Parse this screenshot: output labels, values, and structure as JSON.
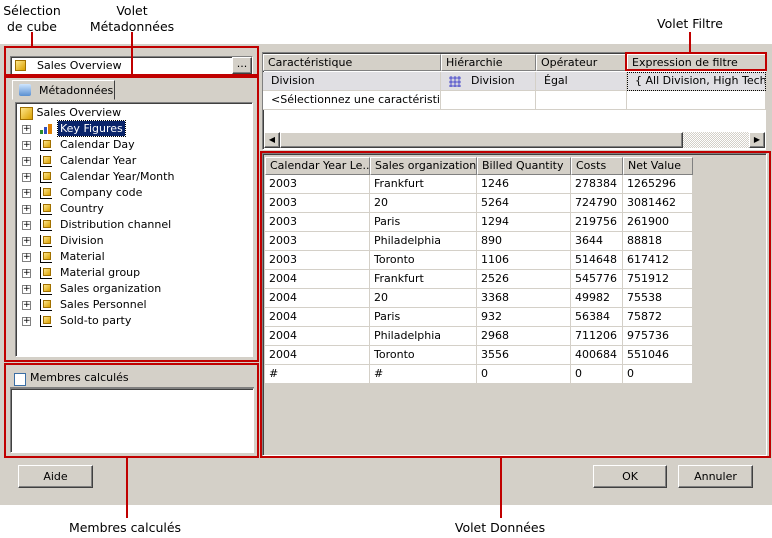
{
  "annotations": {
    "cube_selection": "Sélection\nde cube",
    "metadata_pane": "Volet\nMétadonnées",
    "filter_pane": "Volet Filtre",
    "calc_members": "Membres calculés",
    "data_pane": "Volet Données"
  },
  "cube_selector": {
    "value": "Sales Overview",
    "browse_label": "..."
  },
  "metadata": {
    "tab_label": "Métadonnées",
    "root": "Sales Overview",
    "items": [
      {
        "label": "Key Figures",
        "icon": "key-figures-icon",
        "selected": true
      },
      {
        "label": "Calendar Day",
        "icon": "dimension-icon"
      },
      {
        "label": "Calendar Year",
        "icon": "dimension-icon"
      },
      {
        "label": "Calendar Year/Month",
        "icon": "dimension-icon"
      },
      {
        "label": "Company code",
        "icon": "dimension-icon"
      },
      {
        "label": "Country",
        "icon": "dimension-icon"
      },
      {
        "label": "Distribution channel",
        "icon": "dimension-icon"
      },
      {
        "label": "Division",
        "icon": "dimension-icon"
      },
      {
        "label": "Material",
        "icon": "dimension-icon"
      },
      {
        "label": "Material group",
        "icon": "dimension-icon"
      },
      {
        "label": "Sales organization",
        "icon": "dimension-icon"
      },
      {
        "label": "Sales Personnel",
        "icon": "dimension-icon"
      },
      {
        "label": "Sold-to party",
        "icon": "dimension-icon"
      }
    ]
  },
  "calc_members": {
    "header": "Membres calculés"
  },
  "filter": {
    "columns": [
      "Caractéristique",
      "Hiérarchie",
      "Opérateur",
      "Expression de filtre"
    ],
    "rows": [
      [
        "Division",
        "Division",
        "Égal",
        "{ All Division, High Tech }"
      ],
      [
        "<Sélectionnez une caractéristique>",
        "",
        "",
        ""
      ]
    ]
  },
  "data": {
    "columns": [
      "Calendar Year Le...",
      "Sales organization...",
      "Billed Quantity",
      "Costs",
      "Net Value"
    ],
    "rows": [
      [
        "2003",
        "Frankfurt",
        "1246",
        "278384",
        "1265296"
      ],
      [
        "2003",
        "20",
        "5264",
        "724790",
        "3081462"
      ],
      [
        "2003",
        "Paris",
        "1294",
        "219756",
        "261900"
      ],
      [
        "2003",
        "Philadelphia",
        "890",
        "3644",
        "88818"
      ],
      [
        "2003",
        "Toronto",
        "1106",
        "514648",
        "617412"
      ],
      [
        "2004",
        "Frankfurt",
        "2526",
        "545776",
        "751912"
      ],
      [
        "2004",
        "20",
        "3368",
        "49982",
        "75538"
      ],
      [
        "2004",
        "Paris",
        "932",
        "56384",
        "75872"
      ],
      [
        "2004",
        "Philadelphia",
        "2968",
        "711206",
        "975736"
      ],
      [
        "2004",
        "Toronto",
        "3556",
        "400684",
        "551046"
      ],
      [
        "#",
        "#",
        "0",
        "0",
        "0"
      ]
    ]
  },
  "buttons": {
    "help": "Aide",
    "ok": "OK",
    "cancel": "Annuler"
  },
  "colors": {
    "annotation": "#c00000",
    "selection": "#0a246a",
    "dialog": "#d4d0c8"
  }
}
